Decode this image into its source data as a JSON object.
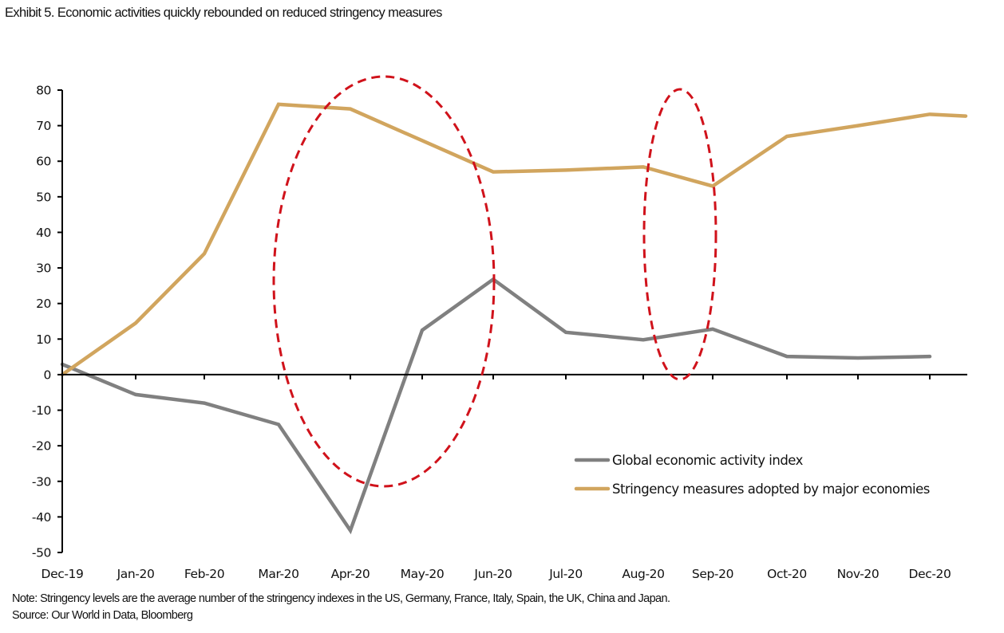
{
  "title": "Exhibit 5. Economic activities quickly rebounded on reduced stringency measures",
  "note": "Note: Stringency levels are the average number of the stringency indexes in the US, Germany, France, Italy, Spain, the UK, China and Japan.",
  "source": "Source: Our World in Data, Bloomberg",
  "colors": {
    "economic": "#808080",
    "stringency": "#D1A55E",
    "highlight": "#D0121B",
    "axis": "#000000"
  },
  "chart_data": {
    "type": "line",
    "title": "Exhibit 5. Economic activities quickly rebounded on reduced stringency measures",
    "xlabel": "",
    "ylabel": "",
    "categories": [
      "Dec-19",
      "Jan-20",
      "Feb-20",
      "Mar-20",
      "Apr-20",
      "May-20",
      "Jun-20",
      "Jul-20",
      "Aug-20",
      "Sep-20",
      "Oct-20",
      "Nov-20",
      "Dec-20"
    ],
    "ylim": [
      -50,
      80
    ],
    "yticks": [
      80,
      70,
      60,
      50,
      40,
      30,
      20,
      10,
      0,
      -10,
      -20,
      -30,
      -40,
      -50
    ],
    "grid": false,
    "legend_position": "bottom-right",
    "series": [
      {
        "name": "Global economic activity index",
        "color": "#808080",
        "values": [
          2.9,
          -5.6,
          -8.0,
          -14.0,
          -43.8,
          12.5,
          26.8,
          11.9,
          9.8,
          12.8,
          5.1,
          4.7,
          5.1
        ]
      },
      {
        "name": "Stringency measures adopted by major economies",
        "color": "#D1A55E",
        "values": [
          0,
          14.5,
          34.0,
          76.0,
          74.7,
          65.8,
          57.0,
          57.5,
          58.4,
          53.0,
          67.0,
          70.0,
          73.2
        ],
        "trailing_value": 72.7
      }
    ],
    "annotations": [
      {
        "type": "dashed-ellipse",
        "color": "#D0121B",
        "around": [
          "Mar-20",
          "Jun-20"
        ],
        "y_range": [
          -31,
          84
        ]
      },
      {
        "type": "dashed-ellipse",
        "color": "#D0121B",
        "around": [
          "Aug-20",
          "Sep-20"
        ],
        "y_range": [
          -1,
          81
        ]
      }
    ]
  }
}
